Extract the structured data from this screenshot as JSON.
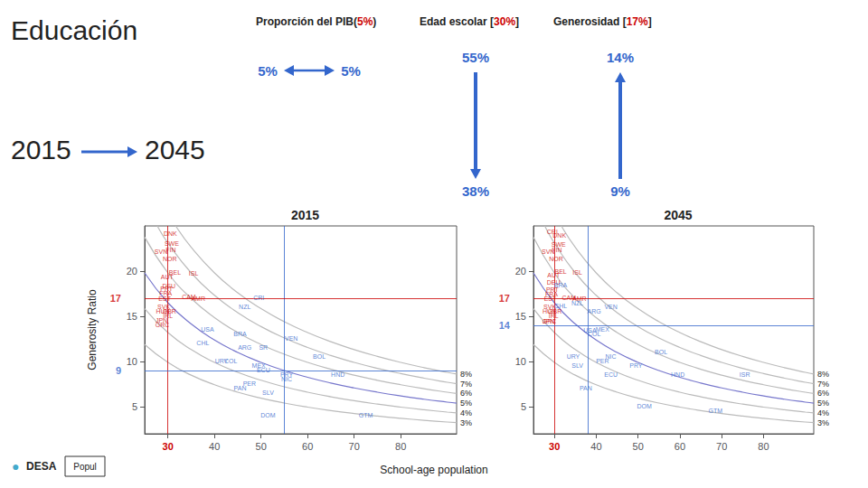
{
  "chart_data": [
    {
      "type": "scatter",
      "title": "2015",
      "ylabel": "Generosity Ratio",
      "xlabel": "School-age population",
      "annotations": [
        {
          "text": "Educación"
        },
        {
          "text": "2015"
        },
        {
          "text": "2045"
        },
        {
          "text": "Proporción del PIB("
        },
        {
          "text": "5%",
          "color": "#cc0000"
        },
        {
          "text": ")"
        },
        {
          "text": "Edad escolar ["
        },
        {
          "text": "30%",
          "color": "#cc0000"
        },
        {
          "text": "]"
        },
        {
          "text": "Generosidad ["
        },
        {
          "text": "17%",
          "color": "#cc0000"
        },
        {
          "text": "]"
        },
        {
          "text": "5%",
          "color": "#3366cc"
        },
        {
          "text": "5%",
          "color": "#3366cc"
        },
        {
          "text": "55%",
          "color": "#3366cc"
        },
        {
          "text": "38%",
          "color": "#3366cc"
        },
        {
          "text": "14%",
          "color": "#3366cc"
        },
        {
          "text": "9%",
          "color": "#3366cc"
        },
        {
          "text": "●",
          "color": "#44aacc"
        },
        {
          "text": "DESA"
        },
        {
          "text": "Popul"
        }
      ],
      "xlim": [
        25,
        92
      ],
      "xticks": [
        30,
        40,
        50,
        60,
        70,
        80
      ],
      "ylim": [
        2,
        25
      ],
      "yticks": [
        5,
        10,
        15,
        20
      ],
      "grid": false,
      "marker": "none",
      "labels": [
        "SVN",
        "AUT",
        "DEU",
        "DNK",
        "SWE",
        "FIN",
        "NOR",
        "BEL",
        "ISL",
        "PRT",
        "FRA",
        "EST",
        "GRC",
        "JPN",
        "HUN",
        "SVK",
        "IRL",
        "GBR",
        "CAM",
        "AMR",
        "CRI",
        "NZL",
        "USA",
        "CHL",
        "BRA",
        "VEN",
        "ARG",
        "SR",
        "URY",
        "COL",
        "MEX",
        "BOL",
        "ECU",
        "PRY",
        "HND",
        "NIC",
        "PER",
        "PAN",
        "SLV",
        "DOM",
        "GTM"
      ],
      "x": [
        28.5,
        29.8,
        30.2,
        30.5,
        30.8,
        30.6,
        30.4,
        31.5,
        35.5,
        29.7,
        29.5,
        29.3,
        28.8,
        28.6,
        28.9,
        29.1,
        30.0,
        30.3,
        34.5,
        36.5,
        49.5,
        46.5,
        38.5,
        37.5,
        45.5,
        56.5,
        46.5,
        50.5,
        41.5,
        43.5,
        49.5,
        62.5,
        50.5,
        55.5,
        66.5,
        55.5,
        47.5,
        45.5,
        51.5,
        51.5,
        72.5
      ],
      "y": [
        22.2,
        19.4,
        18.4,
        24.2,
        23.1,
        22.4,
        21.4,
        19.9,
        19.8,
        18.1,
        17.6,
        17.0,
        14.1,
        14.6,
        15.6,
        16.1,
        15.1,
        15.6,
        17.2,
        17.0,
        17.1,
        16.1,
        13.6,
        12.1,
        13.1,
        12.6,
        11.6,
        11.6,
        10.1,
        10.1,
        9.6,
        10.6,
        9.1,
        8.6,
        8.6,
        8.1,
        7.6,
        7.1,
        6.6,
        4.1,
        4.1
      ],
      "colors": [
        "#cc0000",
        "#cc0000",
        "#cc0000",
        "#cc0000",
        "#cc0000",
        "#cc0000",
        "#cc0000",
        "#cc0000",
        "#cc0000",
        "#cc0000",
        "#cc0000",
        "#cc0000",
        "#cc0000",
        "#cc0000",
        "#cc0000",
        "#cc0000",
        "#cc0000",
        "#cc0000",
        "#cc0000",
        "#cc0000",
        "#3366cc",
        "#3366cc",
        "#3366cc",
        "#3366cc",
        "#3366cc",
        "#3366cc",
        "#3366cc",
        "#3366cc",
        "#3366cc",
        "#3366cc",
        "#3366cc",
        "#3366cc",
        "#3366cc",
        "#3366cc",
        "#3366cc",
        "#3366cc",
        "#3366cc",
        "#3366cc",
        "#3366cc",
        "#3366cc",
        "#3366cc"
      ],
      "reference_lines": [
        {
          "axis": "x",
          "value": 30,
          "color": "#cc0000"
        },
        {
          "axis": "x",
          "value": 55,
          "color": "#3366cc"
        },
        {
          "axis": "y",
          "value": 17,
          "color": "#cc0000"
        },
        {
          "axis": "y",
          "value": 9,
          "color": "#3366cc"
        }
      ],
      "series": [
        {
          "name": "3%",
          "type": "line",
          "color": "#bbbbbb",
          "x": [
            25,
            30,
            35,
            40,
            45,
            50,
            55,
            60,
            65,
            70,
            75,
            80,
            85,
            90,
            92
          ],
          "values": [
            11.88,
            9.9,
            8.4857,
            7.425,
            6.6,
            5.94,
            5.4,
            4.95,
            4.5692,
            4.2429,
            3.96,
            3.7125,
            3.4941,
            3.3,
            3.2283
          ]
        },
        {
          "name": "4%",
          "type": "line",
          "color": "#bbbbbb",
          "x": [
            25,
            30,
            35,
            40,
            45,
            50,
            55,
            60,
            65,
            70,
            75,
            80,
            85,
            90,
            92
          ],
          "values": [
            15.84,
            13.2,
            11.3143,
            9.9,
            8.8,
            7.92,
            7.2,
            6.6,
            6.0923,
            5.6571,
            5.28,
            4.95,
            4.6588,
            4.4,
            4.3043
          ]
        },
        {
          "name": "5%",
          "type": "line",
          "color": "#7777cc",
          "x": [
            25,
            30,
            35,
            40,
            45,
            50,
            55,
            60,
            65,
            70,
            75,
            80,
            85,
            90,
            92
          ],
          "values": [
            19.8,
            16.5,
            14.1429,
            12.375,
            11,
            9.9,
            9,
            8.25,
            7.6154,
            7.0714,
            6.6,
            6.1875,
            5.8235,
            5.5,
            5.3804
          ]
        },
        {
          "name": "6%",
          "type": "line",
          "color": "#bbbbbb",
          "x": [
            25,
            30,
            35,
            40,
            45,
            50,
            55,
            60,
            65,
            70,
            75,
            80,
            85,
            90,
            92
          ],
          "values": [
            23.76,
            19.8,
            16.9714,
            14.85,
            13.2,
            11.88,
            10.8,
            9.9,
            9.1385,
            8.4857,
            7.92,
            7.425,
            6.9882,
            6.6,
            6.4565
          ]
        },
        {
          "name": "7%",
          "type": "line",
          "color": "#bbbbbb",
          "x": [
            27.72,
            30,
            35,
            40,
            45,
            50,
            55,
            60,
            65,
            70,
            75,
            80,
            85,
            90,
            92
          ],
          "values": [
            25,
            23.1,
            19.8,
            17.325,
            15.4,
            13.86,
            12.6,
            11.55,
            10.6615,
            9.9,
            9.24,
            8.6625,
            8.1529,
            7.7,
            7.5326
          ]
        },
        {
          "name": "8%",
          "type": "line",
          "color": "#bbbbbb",
          "x": [
            31.68,
            35,
            40,
            45,
            50,
            55,
            60,
            65,
            70,
            75,
            80,
            85,
            90,
            92
          ],
          "values": [
            25,
            22.6286,
            19.8,
            17.6,
            15.84,
            14.4,
            13.2,
            12.1846,
            11.3143,
            10.56,
            9.9,
            9.3176,
            8.8,
            8.6087
          ]
        }
      ]
    },
    {
      "type": "scatter",
      "title": "2045",
      "xlim": [
        25,
        92
      ],
      "xticks": [
        30,
        40,
        50,
        60,
        70,
        80
      ],
      "ylim": [
        2,
        25
      ],
      "yticks": [
        5,
        10,
        15,
        20
      ],
      "grid": false,
      "marker": "none",
      "labels": [
        "CRI",
        "DNK",
        "SWE",
        "SVN",
        "FIN",
        "NOR",
        "AUT",
        "BEL",
        "ISL",
        "DEU",
        "BRA",
        "PRT",
        "FRA",
        "CHL",
        "EST",
        "VEN",
        "ARG",
        "HUN",
        "SVK",
        "IRL",
        "GBR",
        "NZL",
        "CAM",
        "AMR",
        "GRC",
        "JPN",
        "MEX",
        "COL",
        "USA",
        "BOL",
        "NIC",
        "URY",
        "PER",
        "SLV",
        "ECU",
        "PRY",
        "HND",
        "ISR",
        "PAN",
        "DOM",
        "GTM"
      ],
      "x": [
        29.5,
        31.2,
        31.0,
        28.5,
        30.6,
        30.4,
        29.8,
        31.5,
        35.5,
        29.8,
        31.5,
        29.5,
        29.3,
        31.5,
        29.0,
        43.5,
        39.5,
        28.8,
        28.9,
        29.8,
        30.1,
        35.5,
        33.5,
        36.0,
        28.8,
        28.6,
        41.5,
        39.5,
        38.5,
        55.5,
        43.5,
        34.5,
        41.5,
        35.5,
        43.5,
        49.5,
        59.5,
        75.5,
        37.5,
        51.5,
        68.5
      ],
      "y": [
        24.4,
        24.0,
        23.0,
        22.2,
        22.4,
        21.4,
        19.6,
        20.0,
        19.9,
        18.8,
        18.5,
        18.0,
        17.5,
        16.2,
        17.0,
        16.1,
        15.6,
        15.6,
        16.1,
        15.1,
        15.6,
        16.5,
        17.1,
        17.0,
        14.5,
        14.5,
        13.6,
        13.1,
        13.5,
        11.1,
        10.6,
        10.6,
        10.1,
        9.6,
        8.6,
        9.6,
        8.6,
        8.6,
        7.1,
        5.1,
        4.6
      ],
      "colors": [
        "#cc0000",
        "#cc0000",
        "#cc0000",
        "#cc0000",
        "#cc0000",
        "#cc0000",
        "#cc0000",
        "#cc0000",
        "#cc0000",
        "#cc0000",
        "#3366cc",
        "#cc0000",
        "#cc0000",
        "#3366cc",
        "#cc0000",
        "#3366cc",
        "#3366cc",
        "#cc0000",
        "#cc0000",
        "#cc0000",
        "#cc0000",
        "#3366cc",
        "#cc0000",
        "#cc0000",
        "#cc0000",
        "#cc0000",
        "#3366cc",
        "#3366cc",
        "#3366cc",
        "#3366cc",
        "#3366cc",
        "#3366cc",
        "#3366cc",
        "#3366cc",
        "#3366cc",
        "#3366cc",
        "#3366cc",
        "#3366cc",
        "#3366cc",
        "#3366cc",
        "#3366cc"
      ],
      "reference_lines": [
        {
          "axis": "x",
          "value": 30,
          "color": "#cc0000"
        },
        {
          "axis": "x",
          "value": 38,
          "color": "#3366cc"
        },
        {
          "axis": "y",
          "value": 17,
          "color": "#cc0000"
        },
        {
          "axis": "y",
          "value": 14,
          "color": "#3366cc"
        }
      ],
      "series": [
        {
          "name": "3%",
          "type": "line",
          "color": "#bbbbbb",
          "x": [
            25,
            30,
            35,
            40,
            45,
            50,
            55,
            60,
            65,
            70,
            75,
            80,
            85,
            90,
            92
          ],
          "values": [
            11.88,
            9.9,
            8.4857,
            7.425,
            6.6,
            5.94,
            5.4,
            4.95,
            4.5692,
            4.2429,
            3.96,
            3.7125,
            3.4941,
            3.3,
            3.2283
          ]
        },
        {
          "name": "4%",
          "type": "line",
          "color": "#bbbbbb",
          "x": [
            25,
            30,
            35,
            40,
            45,
            50,
            55,
            60,
            65,
            70,
            75,
            80,
            85,
            90,
            92
          ],
          "values": [
            15.84,
            13.2,
            11.3143,
            9.9,
            8.8,
            7.92,
            7.2,
            6.6,
            6.0923,
            5.6571,
            5.28,
            4.95,
            4.6588,
            4.4,
            4.3043
          ]
        },
        {
          "name": "5%",
          "type": "line",
          "color": "#7777cc",
          "x": [
            25,
            30,
            35,
            40,
            45,
            50,
            55,
            60,
            65,
            70,
            75,
            80,
            85,
            90,
            92
          ],
          "values": [
            19.8,
            16.5,
            14.1429,
            12.375,
            11,
            9.9,
            9,
            8.25,
            7.6154,
            7.0714,
            6.6,
            6.1875,
            5.8235,
            5.5,
            5.3804
          ]
        },
        {
          "name": "6%",
          "type": "line",
          "color": "#bbbbbb",
          "x": [
            25,
            30,
            35,
            40,
            45,
            50,
            55,
            60,
            65,
            70,
            75,
            80,
            85,
            90,
            92
          ],
          "values": [
            23.76,
            19.8,
            16.9714,
            14.85,
            13.2,
            11.88,
            10.8,
            9.9,
            9.1385,
            8.4857,
            7.92,
            7.425,
            6.9882,
            6.6,
            6.4565
          ]
        },
        {
          "name": "7%",
          "type": "line",
          "color": "#bbbbbb",
          "x": [
            27.72,
            30,
            35,
            40,
            45,
            50,
            55,
            60,
            65,
            70,
            75,
            80,
            85,
            90,
            92
          ],
          "values": [
            25,
            23.1,
            19.8,
            17.325,
            15.4,
            13.86,
            12.6,
            11.55,
            10.6615,
            9.9,
            9.24,
            8.6625,
            8.1529,
            7.7,
            7.5326
          ]
        },
        {
          "name": "8%",
          "type": "line",
          "color": "#bbbbbb",
          "x": [
            31.68,
            35,
            40,
            45,
            50,
            55,
            60,
            65,
            70,
            75,
            80,
            85,
            90,
            92
          ],
          "values": [
            25,
            22.6286,
            19.8,
            17.6,
            15.84,
            14.4,
            13.2,
            12.1846,
            11.3143,
            10.56,
            9.9,
            9.3176,
            8.8,
            8.6087
          ]
        }
      ]
    }
  ]
}
